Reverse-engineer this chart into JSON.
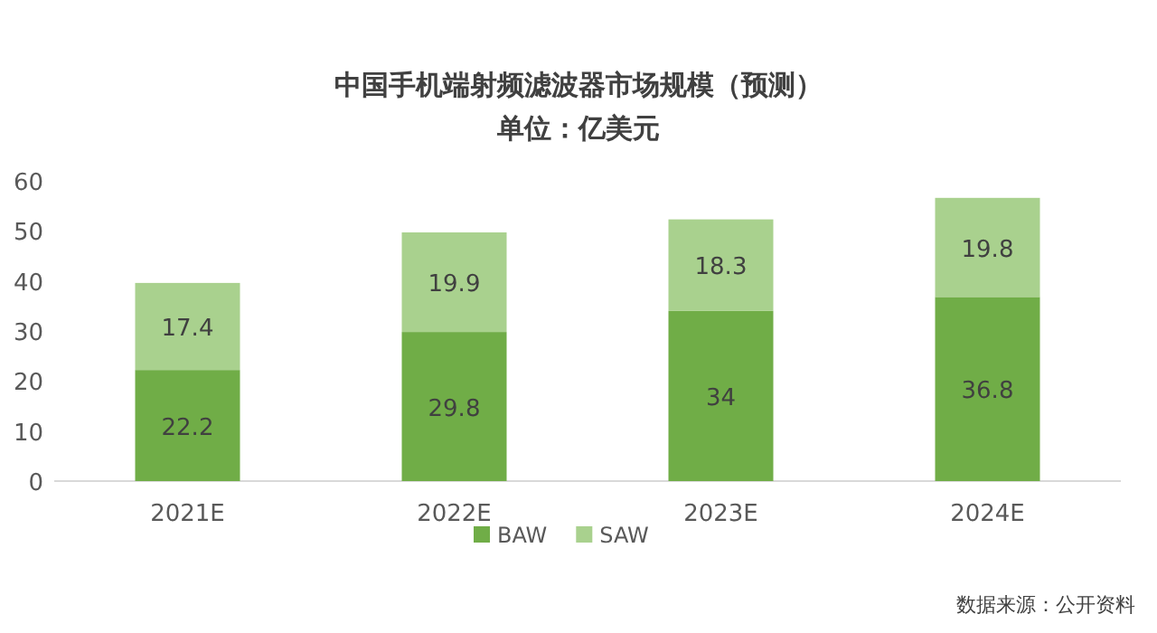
{
  "chart_data": {
    "type": "bar",
    "title": "中国手机端射频滤波器市场规模（预测）",
    "subtitle": "单位：亿美元",
    "categories": [
      "2021E",
      "2022E",
      "2023E",
      "2024E"
    ],
    "series": [
      {
        "name": "BAW",
        "color": "#70ad47",
        "values": [
          22.2,
          29.8,
          34,
          36.8
        ]
      },
      {
        "name": "SAW",
        "color": "#a9d18e",
        "values": [
          17.4,
          19.9,
          18.3,
          19.8
        ]
      }
    ],
    "stacked": true,
    "ylim": [
      0,
      60
    ],
    "yticks": [
      0,
      10,
      20,
      30,
      40,
      50,
      60
    ],
    "grid": false,
    "legend": "bottom",
    "data_labels": true,
    "annotations": [
      "数据来源：公开资料"
    ]
  }
}
